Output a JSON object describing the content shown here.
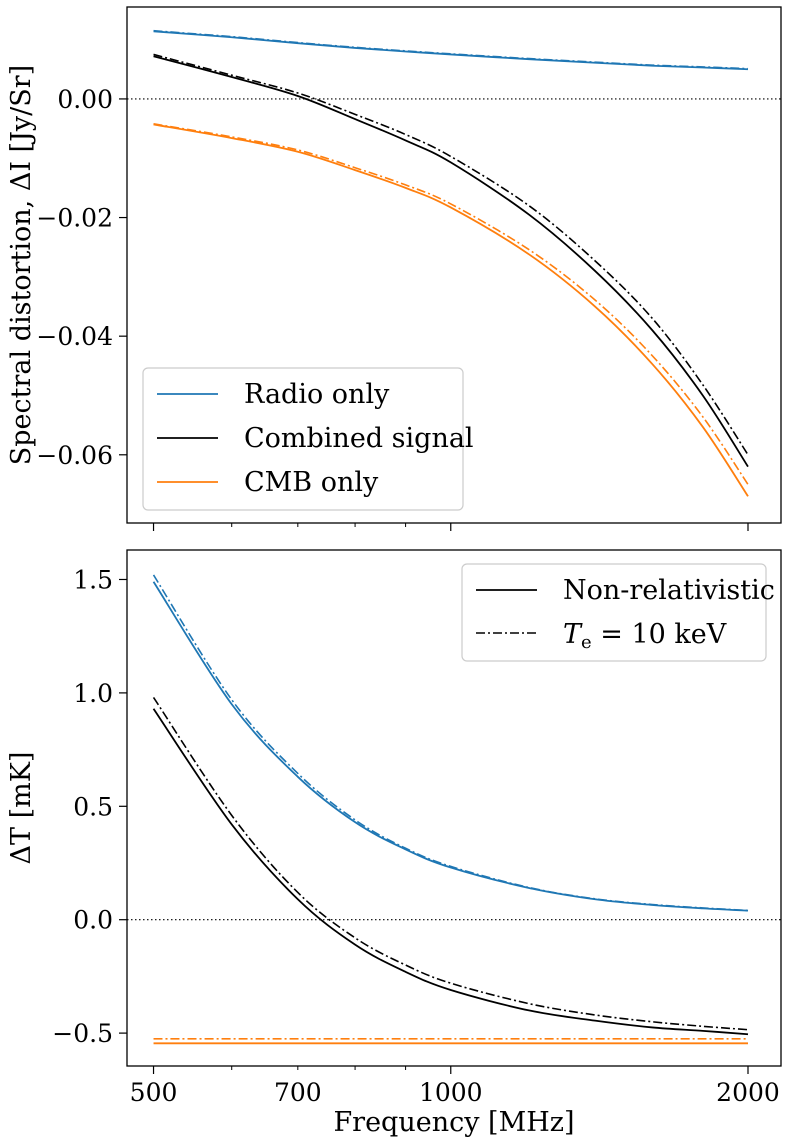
{
  "chart_data": [
    {
      "type": "line",
      "xscale": "log",
      "xlim": [
        470,
        2160
      ],
      "ylim": [
        -0.0715,
        0.0155
      ],
      "ylabel": "Spectral distortion, ΔI [Jy/Sr]",
      "xlabel": "",
      "yticks": [
        0.0,
        -0.02,
        -0.04,
        -0.06
      ],
      "ytick_labels": [
        "0.00",
        "−0.02",
        "−0.04",
        "−0.06"
      ],
      "zero_line": 0,
      "legend": {
        "placement": "lower-left",
        "entries": [
          {
            "label": "Radio only",
            "color": "#1f77b4"
          },
          {
            "label": "Combined signal",
            "color": "#000000"
          },
          {
            "label": "CMB only",
            "color": "#ff7f0e"
          }
        ]
      },
      "x": [
        500,
        600,
        700,
        800,
        900,
        1000,
        1200,
        1400,
        1600,
        1800,
        2000
      ],
      "series": [
        {
          "name": "Radio only (non-relativistic)",
          "color": "#1f77b4",
          "style": "solid",
          "values": [
            0.0114,
            0.0104,
            0.0094,
            0.0086,
            0.008,
            0.0075,
            0.0067,
            0.0061,
            0.0056,
            0.0053,
            0.005
          ]
        },
        {
          "name": "Radio only (Te = 10 keV)",
          "color": "#1f77b4",
          "style": "dashdot",
          "values": [
            0.0115,
            0.0105,
            0.0095,
            0.0087,
            0.0081,
            0.0076,
            0.0068,
            0.0062,
            0.0057,
            0.0054,
            0.0051
          ]
        },
        {
          "name": "Combined signal (non-relativistic)",
          "color": "#000000",
          "style": "solid",
          "values": [
            0.0072,
            0.0037,
            0.0005,
            -0.0034,
            -0.007,
            -0.0107,
            -0.0195,
            -0.029,
            -0.039,
            -0.05,
            -0.062
          ]
        },
        {
          "name": "Combined signal (Te = 10 keV)",
          "color": "#000000",
          "style": "dashdot",
          "values": [
            0.0075,
            0.004,
            0.001,
            -0.0026,
            -0.006,
            -0.0097,
            -0.018,
            -0.0273,
            -0.037,
            -0.0482,
            -0.06
          ]
        },
        {
          "name": "CMB only (non-relativistic)",
          "color": "#ff7f0e",
          "style": "solid",
          "values": [
            -0.0043,
            -0.0066,
            -0.0089,
            -0.012,
            -0.015,
            -0.0183,
            -0.0262,
            -0.035,
            -0.0447,
            -0.0553,
            -0.067
          ]
        },
        {
          "name": "CMB only (Te = 10 keV)",
          "color": "#ff7f0e",
          "style": "dashdot",
          "values": [
            -0.0042,
            -0.0064,
            -0.0086,
            -0.0116,
            -0.0145,
            -0.0177,
            -0.0254,
            -0.0339,
            -0.0433,
            -0.0536,
            -0.065
          ]
        }
      ]
    },
    {
      "type": "line",
      "xscale": "log",
      "xlim": [
        470,
        2160
      ],
      "ylim": [
        -0.645,
        1.63
      ],
      "ylabel": "ΔT [mK]",
      "xlabel": "Frequency [MHz]",
      "xticks": [
        500,
        700,
        1000,
        2000
      ],
      "xtick_labels": [
        "500",
        "700",
        "1000",
        "2000"
      ],
      "yticks": [
        1.5,
        1.0,
        0.5,
        0.0,
        -0.5
      ],
      "ytick_labels": [
        "1.5",
        "1.0",
        "0.5",
        "0.0",
        "−0.5"
      ],
      "zero_line": 0,
      "legend": {
        "placement": "upper-right",
        "entries": [
          {
            "label": "Non-relativistic",
            "style": "solid"
          },
          {
            "label": "T",
            "sub": "e",
            "rest": " = 10 keV",
            "style": "dashdot"
          }
        ]
      },
      "x": [
        500,
        600,
        700,
        800,
        900,
        1000,
        1200,
        1400,
        1600,
        1800,
        2000
      ],
      "series": [
        {
          "name": "Radio only (non-relativistic)",
          "color": "#1f77b4",
          "style": "solid",
          "values": [
            1.49,
            0.95,
            0.63,
            0.43,
            0.31,
            0.23,
            0.14,
            0.09,
            0.065,
            0.05,
            0.04
          ]
        },
        {
          "name": "Radio only (Te = 10 keV)",
          "color": "#1f77b4",
          "style": "dashdot",
          "values": [
            1.52,
            0.97,
            0.645,
            0.44,
            0.315,
            0.235,
            0.142,
            0.092,
            0.067,
            0.052,
            0.041
          ]
        },
        {
          "name": "Combined signal (non-relativistic)",
          "color": "#000000",
          "style": "solid",
          "values": [
            0.93,
            0.42,
            0.09,
            -0.11,
            -0.23,
            -0.31,
            -0.4,
            -0.445,
            -0.475,
            -0.49,
            -0.505
          ]
        },
        {
          "name": "Combined signal (Te = 10 keV)",
          "color": "#000000",
          "style": "dashdot",
          "values": [
            0.98,
            0.46,
            0.12,
            -0.08,
            -0.2,
            -0.28,
            -0.37,
            -0.42,
            -0.45,
            -0.47,
            -0.485
          ]
        },
        {
          "name": "CMB only (non-relativistic)",
          "color": "#ff7f0e",
          "style": "solid",
          "values": [
            -0.545,
            -0.545,
            -0.545,
            -0.545,
            -0.545,
            -0.545,
            -0.545,
            -0.545,
            -0.545,
            -0.545,
            -0.545
          ]
        },
        {
          "name": "CMB only (Te = 10 keV)",
          "color": "#ff7f0e",
          "style": "dashdot",
          "values": [
            -0.525,
            -0.525,
            -0.525,
            -0.525,
            -0.525,
            -0.525,
            -0.525,
            -0.525,
            -0.525,
            -0.525,
            -0.525
          ]
        }
      ]
    }
  ]
}
